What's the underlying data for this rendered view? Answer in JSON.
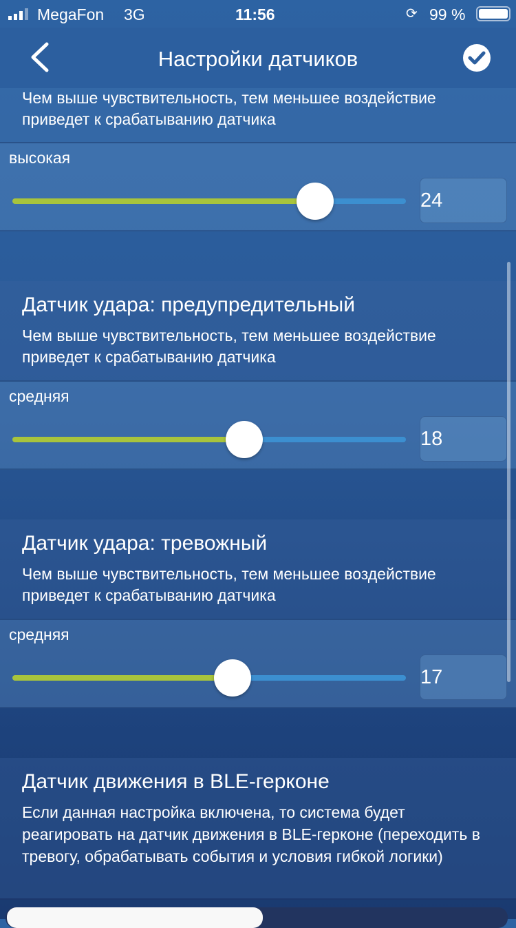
{
  "status_bar": {
    "carrier": "MegaFon",
    "network": "3G",
    "time": "11:56",
    "battery": "99 %"
  },
  "nav": {
    "title": "Настройки датчиков",
    "back_icon": "chevron-left-icon",
    "confirm_icon": "check-circle-icon"
  },
  "sections": [
    {
      "title": "",
      "description": "Чем выше чувствительность, тем меньшее воздействие приведет к срабатыванию датчика",
      "level": "высокая",
      "value": "24",
      "slider_fraction": 0.77
    },
    {
      "title": "Датчик удара: предупредительный",
      "description": "Чем выше чувствительность, тем меньшее воздействие приведет к срабатыванию датчика",
      "level": "средняя",
      "value": "18",
      "slider_fraction": 0.59
    },
    {
      "title": "Датчик удара: тревожный",
      "description": "Чем выше чувствительность, тем меньшее воздействие приведет к срабатыванию датчика",
      "level": "средняя",
      "value": "17",
      "slider_fraction": 0.56
    }
  ],
  "ble": {
    "title": "Датчик движения в BLE-герконе",
    "description": "Если данная настройка включена, то система будет реагировать на датчик движения в BLE-герконе (переходить в тревогу, обрабатывать события и условия гибкой логики)"
  },
  "colors": {
    "fill": "#a8c43c",
    "track": "#3c8fd0",
    "navbar": "#2c5f9f"
  }
}
